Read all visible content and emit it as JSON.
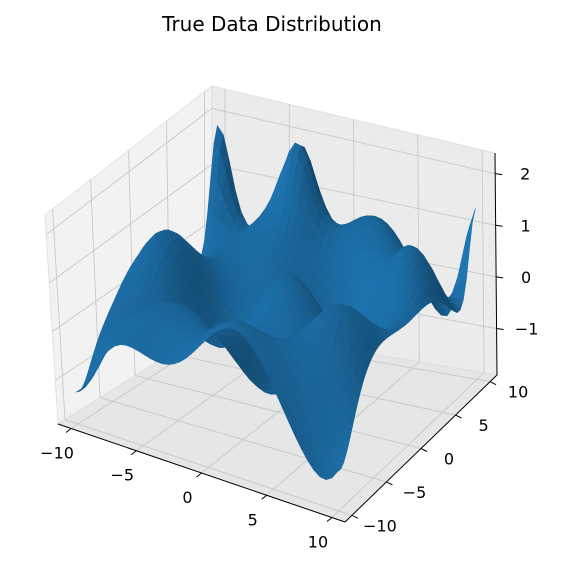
{
  "title": "True Data Distribution",
  "chart_data": {
    "type": "surface3d",
    "title": "True Data Distribution",
    "xlabel": "",
    "ylabel": "",
    "zlabel": "",
    "x_ticks": [
      -10,
      -5,
      0,
      5,
      10
    ],
    "y_ticks": [
      -10,
      -5,
      0,
      5,
      10
    ],
    "z_ticks": [
      -1,
      0,
      1,
      2
    ],
    "x_tick_labels": [
      "−10",
      "−5",
      "0",
      "5",
      "10"
    ],
    "y_tick_labels": [
      "−10",
      "−5",
      "0",
      "5",
      "10"
    ],
    "z_tick_labels": [
      "−1",
      "0",
      "1",
      "2"
    ],
    "xlim": [
      -11,
      11
    ],
    "ylim": [
      -11,
      11
    ],
    "zlim": [
      -1.9,
      2.4
    ],
    "grid": true,
    "surface_color": "#1f77b4",
    "surface_function": "sin(x)*cos(y)... composite wave surface",
    "z_range_shown": [
      -1.6,
      2.2
    ]
  }
}
